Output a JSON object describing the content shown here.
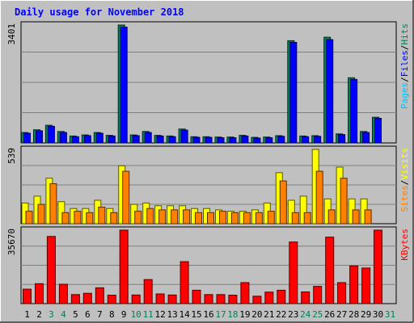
{
  "title": "Daily usage for November 2018",
  "colors": {
    "frame_bg": "#c0c0c0",
    "plot_bg": "#c0c0c0",
    "grid": "#808080",
    "title": "#0000ff",
    "hits": "#00805c",
    "files": "#0000ff",
    "pages": "#00c0ff",
    "visits": "#ffff00",
    "sites": "#ff8000",
    "kbytes": "#ff0000",
    "weekday_label": "#000000",
    "weekend_label": "#00805c"
  },
  "chart_data": [
    {
      "type": "bar",
      "panel": "hits-files-pages",
      "ylabel": [
        "Pages",
        "Files",
        "Hits"
      ],
      "ylim": [
        0,
        3401
      ],
      "ytick_label": "3401",
      "grid": true,
      "categories": [
        "1",
        "2",
        "3",
        "4",
        "5",
        "6",
        "7",
        "8",
        "9",
        "10",
        "11",
        "12",
        "13",
        "14",
        "15",
        "16",
        "17",
        "18",
        "19",
        "20",
        "21",
        "22",
        "23",
        "24",
        "25",
        "26",
        "27",
        "28",
        "29",
        "30",
        "31"
      ],
      "series": [
        {
          "name": "Hits",
          "values": [
            300,
            380,
            510,
            330,
            200,
            230,
            300,
            220,
            3401,
            230,
            330,
            220,
            200,
            400,
            180,
            180,
            170,
            170,
            220,
            160,
            170,
            210,
            2950,
            200,
            210,
            3050,
            260,
            1880,
            330,
            740,
            0
          ]
        },
        {
          "name": "Files",
          "values": [
            280,
            350,
            480,
            300,
            180,
            210,
            280,
            200,
            3340,
            210,
            300,
            200,
            180,
            370,
            160,
            160,
            150,
            150,
            200,
            140,
            150,
            190,
            2900,
            180,
            190,
            2980,
            240,
            1830,
            300,
            710,
            0
          ]
        },
        {
          "name": "Pages",
          "values": [
            0,
            0,
            0,
            0,
            0,
            0,
            0,
            0,
            0,
            0,
            0,
            0,
            0,
            0,
            0,
            0,
            0,
            0,
            0,
            0,
            0,
            0,
            0,
            0,
            0,
            0,
            0,
            0,
            0,
            0,
            0
          ]
        }
      ]
    },
    {
      "type": "bar",
      "panel": "visits-sites",
      "ylabel": [
        "Sites",
        "Visits"
      ],
      "ylim": [
        0,
        539
      ],
      "ytick_label": "539",
      "grid": true,
      "categories": [
        "1",
        "2",
        "3",
        "4",
        "5",
        "6",
        "7",
        "8",
        "9",
        "10",
        "11",
        "12",
        "13",
        "14",
        "15",
        "16",
        "17",
        "18",
        "19",
        "20",
        "21",
        "22",
        "23",
        "24",
        "25",
        "26",
        "27",
        "28",
        "29",
        "30",
        "31"
      ],
      "series": [
        {
          "name": "Visits",
          "values": [
            150,
            200,
            330,
            160,
            110,
            110,
            170,
            110,
            420,
            140,
            150,
            130,
            130,
            130,
            110,
            110,
            100,
            90,
            90,
            100,
            150,
            370,
            170,
            200,
            539,
            180,
            410,
            180,
            180,
            0,
            0
          ]
        },
        {
          "name": "Sites",
          "values": [
            90,
            140,
            290,
            80,
            90,
            80,
            120,
            80,
            380,
            90,
            110,
            100,
            100,
            100,
            80,
            80,
            90,
            80,
            80,
            80,
            90,
            310,
            80,
            80,
            380,
            100,
            330,
            100,
            100,
            0,
            0
          ]
        }
      ]
    },
    {
      "type": "bar",
      "panel": "kbytes",
      "ylabel": [
        "KBytes"
      ],
      "ylim": [
        0,
        35670
      ],
      "ytick_label": "35670",
      "grid": true,
      "categories": [
        "1",
        "2",
        "3",
        "4",
        "5",
        "6",
        "7",
        "8",
        "9",
        "10",
        "11",
        "12",
        "13",
        "14",
        "15",
        "16",
        "17",
        "18",
        "19",
        "20",
        "21",
        "22",
        "23",
        "24",
        "25",
        "26",
        "27",
        "28",
        "29",
        "30",
        "31"
      ],
      "series": [
        {
          "name": "KBytes",
          "values": [
            7000,
            9700,
            32600,
            9400,
            4400,
            5000,
            7700,
            4100,
            35670,
            4200,
            11700,
            4700,
            4200,
            20400,
            6500,
            4400,
            4400,
            4100,
            10200,
            3600,
            5600,
            6500,
            29900,
            5700,
            8400,
            32300,
            10200,
            18300,
            17300,
            35670,
            0
          ]
        }
      ]
    }
  ],
  "x_labels": {
    "days": [
      "1",
      "2",
      "3",
      "4",
      "5",
      "6",
      "7",
      "8",
      "9",
      "10",
      "11",
      "12",
      "13",
      "14",
      "15",
      "16",
      "17",
      "18",
      "19",
      "20",
      "21",
      "22",
      "23",
      "24",
      "25",
      "26",
      "27",
      "28",
      "29",
      "30",
      "31"
    ],
    "weekend_days": [
      "3",
      "4",
      "10",
      "11",
      "17",
      "18",
      "24",
      "25",
      "31"
    ]
  }
}
